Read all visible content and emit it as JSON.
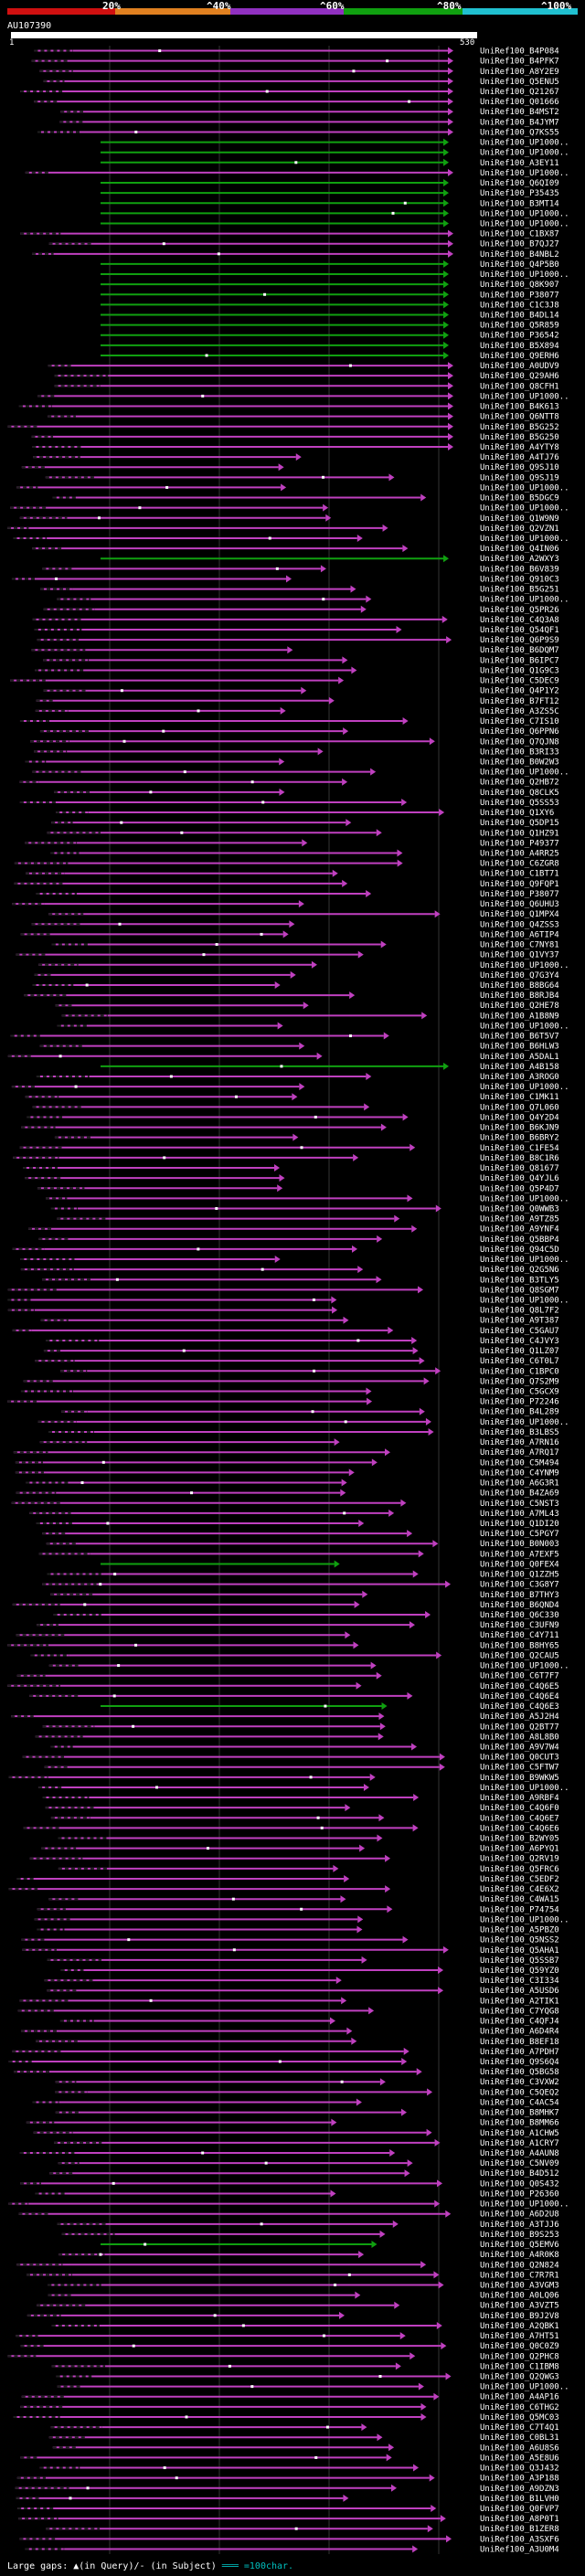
{
  "legend": {
    "ticks": [
      "20%",
      "^40%",
      "^60%",
      "^80%",
      "^100%"
    ],
    "colors": [
      "#d01010",
      "#e08020",
      "#9030c0",
      "#10a010",
      "#20c0d0"
    ]
  },
  "query": {
    "id": "AU107390",
    "start": "1",
    "end": "530"
  },
  "footer": {
    "gaps": "Large gaps: ▲(in Query)/- (in Subject)",
    "scale": "═══ =100char."
  },
  "hit_color_names": {
    "P": "magenta",
    "G": "green"
  },
  "hits": [
    "UniRef100_B4P084",
    "UniRef100_B4PFK7",
    "UniRef100_A8Y2E9",
    "UniRef100_Q5ENU5",
    "UniRef100_Q21267",
    "UniRef100_Q01666",
    "UniRef100_B4MST2",
    "UniRef100_B4JYM7",
    "UniRef100_Q7KS55",
    "UniRef100_UP1000..",
    "UniRef100_UP1000..",
    "UniRef100_A3EY11",
    "UniRef100_UP1000..",
    "UniRef100_Q6QI09",
    "UniRef100_P35435",
    "UniRef100_B3MT14",
    "UniRef100_UP1000..",
    "UniRef100_UP1000..",
    "UniRef100_C1BX87",
    "UniRef100_B7QJ27",
    "UniRef100_B4NBL2",
    "UniRef100_Q4P5B0",
    "UniRef100_UP1000..",
    "UniRef100_Q8K907",
    "UniRef100_P38077",
    "UniRef100_C1C3J8",
    "UniRef100_B4DL14",
    "UniRef100_Q5R859",
    "UniRef100_P36542",
    "UniRef100_B5X894",
    "UniRef100_Q9ERH6",
    "UniRef100_A0UDV9",
    "UniRef100_Q29AH6",
    "UniRef100_Q8CFH1",
    "UniRef100_UP1000..",
    "UniRef100_B4K613",
    "UniRef100_Q6NTT8",
    "UniRef100_B5G252",
    "UniRef100_B5G250",
    "UniRef100_A4YTY8",
    "UniRef100_A4TJ76",
    "UniRef100_Q9SJ10",
    "UniRef100_Q9SJ19",
    "UniRef100_UP1000..",
    "UniRef100_B5DGC9",
    "UniRef100_UP1000..",
    "UniRef100_Q1W9N9",
    "UniRef100_Q2VZN1",
    "UniRef100_UP1000..",
    "UniRef100_Q4IN06",
    "UniRef100_A2WXY3",
    "UniRef100_B6V839",
    "UniRef100_Q910C3",
    "UniRef100_B5G251",
    "UniRef100_UP1000..",
    "UniRef100_Q5PR26",
    "UniRef100_C4Q3A8",
    "UniRef100_Q54QF1",
    "UniRef100_Q6P9S9",
    "UniRef100_B6DQM7",
    "UniRef100_B6IPC7",
    "UniRef100_Q1G9C3",
    "UniRef100_C5DEC9",
    "UniRef100_Q4P1Y2",
    "UniRef100_B7FT12",
    "UniRef100_A3ZS5C",
    "UniRef100_C7IS10",
    "UniRef100_Q6PPN6",
    "UniRef100_Q7QJN8",
    "UniRef100_B3RI33",
    "UniRef100_B0W2W3",
    "UniRef100_UP1000..",
    "UniRef100_Q2HB72",
    "UniRef100_Q8CLK5",
    "UniRef100_Q5SS53",
    "UniRef100_Q1XY6",
    "UniRef100_Q5DP15",
    "UniRef100_Q1HZ91",
    "UniRef100_P49377",
    "UniRef100_A4RR25",
    "UniRef100_C6ZGR8",
    "UniRef100_C1BT71",
    "UniRef100_Q9FQP1",
    "UniRef100_P38077",
    "UniRef100_Q6UHU3",
    "UniRef100_Q1MPX4",
    "UniRef100_Q4ZSS3",
    "UniRef100_A6TIP4",
    "UniRef100_C7NY81",
    "UniRef100_Q1VY37",
    "UniRef100_UP1000..",
    "UniRef100_Q7G3Y4",
    "UniRef100_B8BG64",
    "UniRef100_B8RJB4",
    "UniRef100_Q2HE78",
    "UniRef100_A1B8N9",
    "UniRef100_UP1000..",
    "UniRef100_B6T5V7",
    "UniRef100_B6HLW3",
    "UniRef100_A5DAL1",
    "UniRef100_A4B158",
    "UniRef100_A3ROG0",
    "UniRef100_UP1000..",
    "UniRef100_C1MK11",
    "UniRef100_Q7L060",
    "UniRef100_Q4Y2D4",
    "UniRef100_B6KJN9",
    "UniRef100_B6BRY2",
    "UniRef100_C1FE54",
    "UniRef100_B8C1R6",
    "UniRef100_Q81677",
    "UniRef100_Q4YJL6",
    "UniRef100_Q5P4D7",
    "UniRef100_UP1000..",
    "UniRef100_Q0WWB3",
    "UniRef100_A9TZ85",
    "UniRef100_A9YNF4",
    "UniRef100_Q5BBP4",
    "UniRef100_Q94C5D",
    "UniRef100_UP1000..",
    "UniRef100_Q2G5N6",
    "UniRef100_B3TLY5",
    "UniRef100_Q8SGM7",
    "UniRef100_UP1000..",
    "UniRef100_Q8L7F2",
    "UniRef100_A9T387",
    "UniRef100_C5GAU7",
    "UniRef100_C4JVY3",
    "UniRef100_Q1LZ07",
    "UniRef100_C6T0L7",
    "UniRef100_C1BPC0",
    "UniRef100_Q7S2M9",
    "UniRef100_C5GCX9",
    "UniRef100_P72246",
    "UniRef100_B4L289",
    "UniRef100_UP1000..",
    "UniRef100_B3LBS5",
    "UniRef100_A7RN16",
    "UniRef100_A7RQ17",
    "UniRef100_C5M494",
    "UniRef100_C4YNM9",
    "UniRef100_A6G3R1",
    "UniRef100_B4ZA69",
    "UniRef100_C5NST3",
    "UniRef100_A7ML43",
    "UniRef100_Q1DI20",
    "UniRef100_C5PGY7",
    "UniRef100_B0N003",
    "UniRef100_A7EXF5",
    "UniRef100_Q0FEX4",
    "UniRef100_Q1ZZH5",
    "UniRef100_C3G8Y7",
    "UniRef100_B7THY3",
    "UniRef100_B6QND4",
    "UniRef100_Q6C330",
    "UniRef100_C3UFN9",
    "UniRef100_C4Y711",
    "UniRef100_B8HY65",
    "UniRef100_Q2CAU5",
    "UniRef100_UP1000..",
    "UniRef100_C6T7F7",
    "UniRef100_C4Q6E5",
    "UniRef100_C4Q6E4",
    "UniRef100_C4Q6E3",
    "UniRef100_A5J2H4",
    "UniRef100_Q2BT77",
    "UniRef100_A8L8B0",
    "UniRef100_A9V7W4",
    "UniRef100_Q0CUT3",
    "UniRef100_C5FTW7",
    "UniRef100_B9WKW5",
    "UniRef100_UP1000..",
    "UniRef100_A9RBF4",
    "UniRef100_C4Q6F0",
    "UniRef100_C4Q6E7",
    "UniRef100_C4Q6E6",
    "UniRef100_B2WY05",
    "UniRef100_A6PYQ1",
    "UniRef100_Q2RV19",
    "UniRef100_Q5FRC6",
    "UniRef100_C5EDF2",
    "UniRef100_C4E6X2",
    "UniRef100_C4WA15",
    "UniRef100_P74754",
    "UniRef100_UP1000..",
    "UniRef100_A5PBZ0",
    "UniRef100_Q5NSS2",
    "UniRef100_Q5AHA1",
    "UniRef100_Q5SSB7",
    "UniRef100_Q59YZ0",
    "UniRef100_C3I334",
    "UniRef100_A5USD6",
    "UniRef100_A2TIK1",
    "UniRef100_C7YQG8",
    "UniRef100_C4QFJ4",
    "UniRef100_A6D4R4",
    "UniRef100_B8EF18",
    "UniRef100_A7PDH7",
    "UniRef100_Q9S6Q4",
    "UniRef100_Q5BG58",
    "UniRef100_C3VXW2",
    "UniRef100_C5QEQ2",
    "UniRef100_C4AC54",
    "UniRef100_B8MHK7",
    "UniRef100_B8MM66",
    "UniRef100_A1CHW5",
    "UniRef100_A1CRY7",
    "UniRef100_A4AUN8",
    "UniRef100_C5NV09",
    "UniRef100_B4D512",
    "UniRef100_Q0S432",
    "UniRef100_P26360",
    "UniRef100_UP1000..",
    "UniRef100_A6D2U8",
    "UniRef100_A3TJJ6",
    "UniRef100_B9S253",
    "UniRef100_Q5EMV6",
    "UniRef100_A4R0K8",
    "UniRef100_Q2N824",
    "UniRef100_C7R7R1",
    "UniRef100_A3VGM3",
    "UniRef100_A0LQ06",
    "UniRef100_A3VZT5",
    "UniRef100_B9J2V8",
    "UniRef100_A2QBK1",
    "UniRef100_A7HT51",
    "UniRef100_Q0C0Z9",
    "UniRef100_Q2PHC8",
    "UniRef100_C1IBM8",
    "UniRef100_Q2QWG3",
    "UniRef100_UP1000..",
    "UniRef100_A4AP16",
    "UniRef100_C6THG2",
    "UniRef100_Q5MC03",
    "UniRef100_C7T4Q1",
    "UniRef100_C0BL31",
    "UniRef100_A6U8S6",
    "UniRef100_A5E8U6",
    "UniRef100_Q3J432",
    "UniRef100_A3P188",
    "UniRef100_A9DZN3",
    "UniRef100_B1LVH0",
    "UniRef100_Q0FVP7",
    "UniRef100_A8P0T1",
    "UniRef100_B1ZER8",
    "UniRef100_A3SXF6",
    "UniRef100_A3U0M4"
  ]
}
